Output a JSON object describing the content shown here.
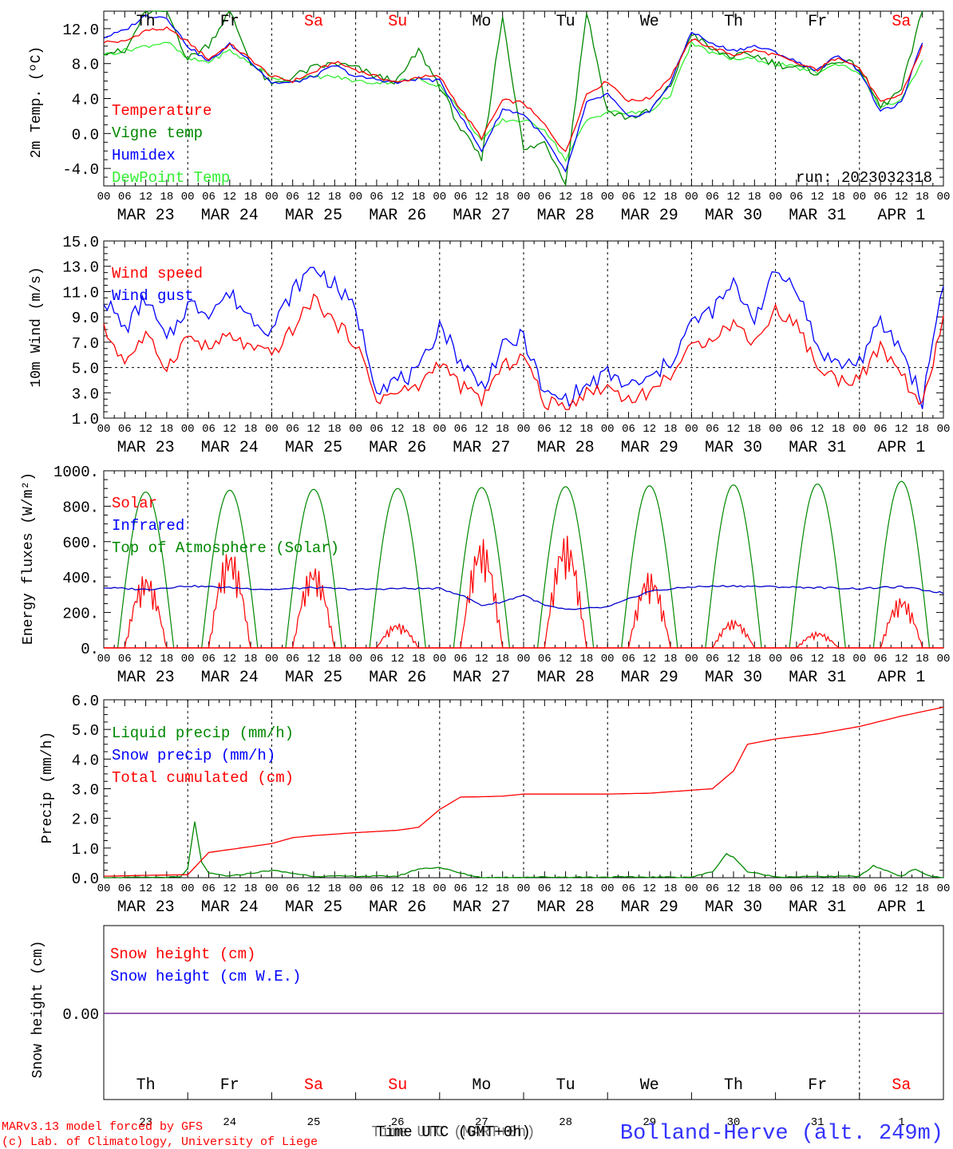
{
  "colors": {
    "temperature": "#ff0000",
    "vigne": "#008800",
    "humidex": "#0000ff",
    "dewpoint": "#33ee33",
    "solar": "#ff0000",
    "infrared": "#0000cc",
    "toa": "#008800",
    "liquid": "#008800",
    "snow_precip": "#0000ff",
    "cumulated": "#ff0000",
    "snow_height": "#ff0000",
    "snow_we": "#0000ff",
    "weekend": "#ff0000",
    "weekday": "#000000",
    "station": "#3333ff",
    "credit": "#ff0000"
  },
  "time_axis": {
    "hour_ticks": [
      "00",
      "06",
      "12",
      "18"
    ],
    "date_labels": [
      "MAR 23",
      "MAR 24",
      "MAR 25",
      "MAR 26",
      "MAR 27",
      "MAR 28",
      "MAR 29",
      "MAR 30",
      "MAR 31",
      "APR  1"
    ],
    "day_names": [
      "Th",
      "Fr",
      "Sa",
      "Su",
      "Mo",
      "Tu",
      "We",
      "Th",
      "Fr",
      "Sa"
    ],
    "weekend_flags": [
      false,
      false,
      true,
      true,
      false,
      false,
      false,
      false,
      false,
      true
    ],
    "day_numbers": [
      "23",
      "24",
      "25",
      "26",
      "27",
      "28",
      "29",
      "30",
      "31",
      "1"
    ],
    "xlabel": "Time UTC (GMT+0h)",
    "xlabel_overlap": "Time UTC (MART+0h)"
  },
  "footer": {
    "credit_line1": "MARv3.13 model forced by GFS",
    "credit_line2": "(c) Lab. of Climatology, University of Liege",
    "station": "Bolland-Herve (alt. 249m)"
  },
  "chart_data": [
    {
      "id": "temp",
      "type": "line",
      "ylabel": "2m Temp. (ºC)",
      "ylim": [
        -6,
        14
      ],
      "yticks": [
        "-4.0",
        "0.0",
        "4.0",
        "8.0",
        "12.0"
      ],
      "ytick_values": [
        -4,
        0,
        4,
        8,
        12
      ],
      "annotation": "run: 2023032318",
      "legend": [
        "Temperature",
        "Vigne temp",
        "Humidex",
        "DewPoint Temp"
      ],
      "x_unit": "hours since MAR 23 00 UTC",
      "series": [
        {
          "name": "Temperature",
          "x": [
            0,
            6,
            12,
            18,
            24,
            30,
            36,
            42,
            48,
            54,
            60,
            66,
            72,
            78,
            84,
            90,
            96,
            102,
            108,
            114,
            120,
            126,
            132,
            138,
            144,
            150,
            156,
            162,
            168,
            174,
            180,
            186,
            192,
            198,
            204,
            210,
            216,
            222,
            228,
            234
          ],
          "values": [
            10.5,
            10.5,
            11.8,
            12.0,
            10.5,
            8.5,
            10.2,
            8.5,
            6.5,
            6.0,
            7.0,
            8.2,
            7.3,
            6.5,
            5.8,
            6.5,
            6.5,
            2.8,
            -0.5,
            3.8,
            3.5,
            1.0,
            -2.2,
            4.5,
            6.0,
            3.7,
            4.0,
            6.5,
            10.8,
            9.8,
            9.0,
            9.5,
            9.0,
            8.0,
            7.3,
            8.8,
            7.5,
            3.5,
            4.5,
            10.0
          ]
        },
        {
          "name": "Vigne temp",
          "x": [
            0,
            6,
            12,
            18,
            24,
            30,
            36,
            42,
            48,
            54,
            60,
            66,
            72,
            78,
            84,
            90,
            96,
            102,
            108,
            114,
            120,
            126,
            132,
            138,
            144,
            150,
            156,
            162,
            168,
            174,
            180,
            186,
            192,
            198,
            204,
            210,
            216,
            222,
            228,
            234
          ],
          "values": [
            9.5,
            9.2,
            14.0,
            14.0,
            8.5,
            10.2,
            14.0,
            8.2,
            5.5,
            6.5,
            7.5,
            8.0,
            7.5,
            6.5,
            6.0,
            9.5,
            5.5,
            0.5,
            -3.0,
            13.5,
            -2.0,
            -1.0,
            -5.5,
            14.0,
            2.5,
            1.8,
            2.5,
            5.5,
            11.5,
            9.5,
            8.8,
            9.0,
            8.0,
            7.5,
            7.0,
            8.5,
            7.5,
            3.0,
            5.0,
            14.0
          ]
        },
        {
          "name": "Humidex",
          "x": [
            0,
            6,
            12,
            18,
            24,
            30,
            36,
            42,
            48,
            54,
            60,
            66,
            72,
            78,
            84,
            90,
            96,
            102,
            108,
            114,
            120,
            126,
            132,
            138,
            144,
            150,
            156,
            162,
            168,
            174,
            180,
            186,
            192,
            198,
            204,
            210,
            216,
            222,
            228,
            234
          ],
          "values": [
            11.0,
            11.8,
            13.5,
            13.3,
            10.0,
            8.2,
            10.2,
            8.3,
            5.8,
            5.8,
            6.5,
            7.8,
            6.5,
            6.2,
            5.8,
            6.3,
            6.0,
            2.0,
            -2.0,
            2.8,
            2.2,
            -0.5,
            -4.5,
            3.5,
            4.5,
            1.8,
            2.5,
            5.8,
            11.7,
            10.2,
            9.5,
            10.0,
            9.3,
            8.2,
            7.2,
            9.0,
            7.2,
            2.5,
            3.5,
            10.5
          ]
        },
        {
          "name": "DewPoint Temp",
          "x": [
            0,
            6,
            12,
            18,
            24,
            30,
            36,
            42,
            48,
            54,
            60,
            66,
            72,
            78,
            84,
            90,
            96,
            102,
            108,
            114,
            120,
            126,
            132,
            138,
            144,
            150,
            156,
            162,
            168,
            174,
            180,
            186,
            192,
            198,
            204,
            210,
            216,
            222,
            228,
            234
          ],
          "values": [
            9.0,
            9.5,
            10.0,
            10.5,
            8.5,
            8.2,
            9.5,
            8.0,
            6.5,
            6.0,
            6.5,
            6.5,
            6.0,
            5.8,
            6.0,
            6.2,
            5.5,
            2.5,
            -0.8,
            1.5,
            1.5,
            0.5,
            -3.0,
            1.5,
            2.5,
            2.3,
            2.5,
            4.5,
            10.3,
            9.2,
            8.5,
            8.5,
            8.0,
            7.5,
            7.0,
            8.0,
            7.0,
            3.0,
            3.8,
            8.2
          ]
        }
      ]
    },
    {
      "id": "wind",
      "type": "line",
      "ylabel": "10m Wind (m/s)",
      "ylim": [
        1,
        15
      ],
      "yticks": [
        "1.0",
        "3.0",
        "5.0",
        "7.0",
        "9.0",
        "11.0",
        "13.0",
        "15.0"
      ],
      "ytick_values": [
        1,
        3,
        5,
        7,
        9,
        11,
        13,
        15
      ],
      "hline": 5,
      "legend": [
        "Wind speed",
        "Wind gust"
      ],
      "x_unit": "hours since MAR 23 00 UTC",
      "series": [
        {
          "name": "Wind speed",
          "x": [
            0,
            6,
            12,
            18,
            24,
            30,
            36,
            42,
            48,
            54,
            60,
            66,
            72,
            78,
            84,
            90,
            96,
            102,
            108,
            114,
            120,
            126,
            132,
            138,
            144,
            150,
            156,
            162,
            168,
            174,
            180,
            186,
            192,
            198,
            204,
            210,
            216,
            222,
            228,
            234,
            240
          ],
          "values": [
            8.0,
            5.5,
            7.5,
            5.0,
            7.5,
            6.5,
            7.5,
            6.5,
            6.0,
            8.0,
            10.5,
            8.5,
            7.0,
            2.5,
            3.0,
            3.5,
            5.5,
            3.5,
            2.5,
            5.0,
            6.0,
            2.2,
            2.0,
            3.0,
            3.5,
            2.5,
            3.0,
            4.5,
            6.5,
            7.5,
            8.5,
            7.0,
            9.5,
            8.5,
            5.0,
            4.0,
            4.2,
            6.5,
            4.5,
            1.8,
            9.0
          ]
        },
        {
          "name": "Wind gust",
          "x": [
            0,
            6,
            12,
            18,
            24,
            30,
            36,
            42,
            48,
            54,
            60,
            66,
            72,
            78,
            84,
            90,
            96,
            102,
            108,
            114,
            120,
            126,
            132,
            138,
            144,
            150,
            156,
            162,
            168,
            174,
            180,
            186,
            192,
            198,
            204,
            210,
            216,
            222,
            228,
            234,
            240
          ],
          "values": [
            10.5,
            8.0,
            10.5,
            7.0,
            10.0,
            9.5,
            10.8,
            9.0,
            8.0,
            11.0,
            13.0,
            11.5,
            9.5,
            3.5,
            4.0,
            4.5,
            8.5,
            5.5,
            3.5,
            6.5,
            7.5,
            2.8,
            2.5,
            3.5,
            4.5,
            3.5,
            4.0,
            5.5,
            8.5,
            9.5,
            11.5,
            9.0,
            12.5,
            11.5,
            6.5,
            5.2,
            5.5,
            8.5,
            6.5,
            2.3,
            12.0
          ]
        }
      ]
    },
    {
      "id": "energy",
      "type": "line",
      "ylabel": "Energy fluxes (W/m²)",
      "ylim": [
        0,
        1000
      ],
      "yticks": [
        "0.",
        "200.",
        "400.",
        "600.",
        "800.",
        "1000."
      ],
      "ytick_values": [
        0,
        200,
        400,
        600,
        800,
        1000
      ],
      "legend": [
        "Solar",
        "Infrared",
        "Top of Atmosphere (Solar)"
      ],
      "toa_peaks": [
        880,
        890,
        895,
        900,
        905,
        910,
        915,
        920,
        925,
        940
      ],
      "solar_peaks": [
        420,
        560,
        470,
        140,
        620,
        640,
        430,
        160,
        90,
        290
      ],
      "series": [
        {
          "name": "Infrared",
          "x": [
            0,
            12,
            24,
            36,
            48,
            60,
            72,
            84,
            96,
            102,
            108,
            114,
            120,
            126,
            132,
            144,
            156,
            168,
            180,
            192,
            204,
            216,
            228,
            240
          ],
          "values": [
            340,
            330,
            350,
            340,
            330,
            340,
            330,
            335,
            335,
            300,
            240,
            260,
            300,
            240,
            215,
            230,
            320,
            345,
            350,
            345,
            340,
            335,
            345,
            310
          ]
        }
      ]
    },
    {
      "id": "precip",
      "type": "line",
      "ylabel": "Precip (mm/h)",
      "ylim": [
        0,
        6
      ],
      "yticks": [
        "0.0",
        "1.0",
        "2.0",
        "3.0",
        "4.0",
        "5.0",
        "6.0"
      ],
      "ytick_values": [
        0,
        1,
        2,
        3,
        4,
        5,
        6
      ],
      "legend": [
        "Liquid precip (mm/h)",
        "Snow precip (mm/h)",
        "Total cumulated (cm)"
      ],
      "series": [
        {
          "name": "Total cumulated (cm)",
          "x": [
            0,
            12,
            24,
            30,
            36,
            48,
            54,
            60,
            72,
            84,
            90,
            96,
            102,
            108,
            114,
            120,
            132,
            144,
            156,
            168,
            174,
            180,
            184,
            192,
            204,
            216,
            228,
            234,
            240
          ],
          "values": [
            0.05,
            0.08,
            0.1,
            0.85,
            0.95,
            1.15,
            1.35,
            1.42,
            1.52,
            1.6,
            1.7,
            2.3,
            2.72,
            2.73,
            2.75,
            2.82,
            2.82,
            2.82,
            2.85,
            2.95,
            3.0,
            3.6,
            4.5,
            4.68,
            4.85,
            5.1,
            5.45,
            5.6,
            5.75
          ]
        },
        {
          "name": "Liquid precip (mm/h)",
          "x": [
            0,
            22,
            24,
            26,
            28,
            30,
            36,
            48,
            60,
            84,
            90,
            96,
            102,
            108,
            120,
            168,
            174,
            178,
            180,
            184,
            192,
            216,
            220,
            228,
            232,
            236,
            240
          ],
          "values": [
            0.0,
            0.02,
            0.3,
            1.9,
            0.5,
            0.15,
            0.05,
            0.25,
            0.05,
            0.05,
            0.3,
            0.35,
            0.15,
            0.0,
            0.02,
            0.02,
            0.2,
            0.8,
            0.7,
            0.2,
            0.03,
            0.05,
            0.4,
            0.05,
            0.3,
            0.05,
            0.0
          ]
        }
      ]
    },
    {
      "id": "snow",
      "type": "line",
      "ylabel": "Snow height (cm)",
      "yticks": [
        "0.00"
      ],
      "legend": [
        "Snow height (cm)",
        "Snow height (cm W.E.)"
      ],
      "series": [
        {
          "name": "Snow height (cm)",
          "x": [
            0,
            240
          ],
          "values": [
            0.0,
            0.0
          ]
        }
      ]
    }
  ]
}
